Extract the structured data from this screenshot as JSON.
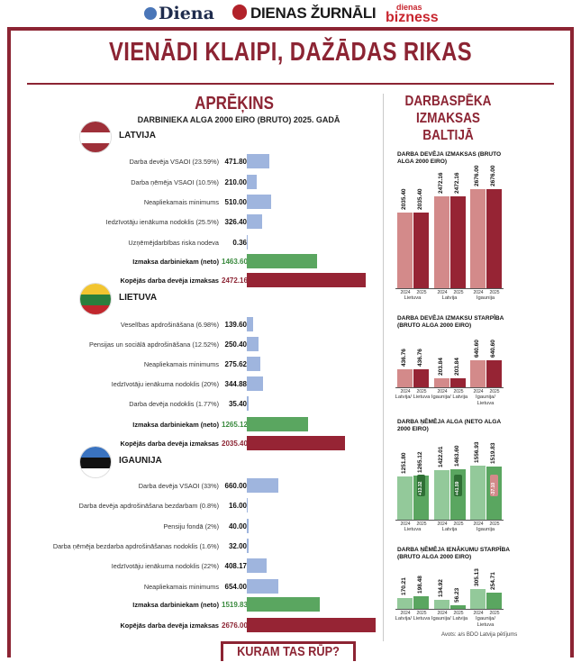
{
  "header": {
    "logo_diena": "Diena",
    "logo_zurnali": "DIENAS ŽURNĀLI",
    "logo_bizness_small": "dienas",
    "logo_bizness": "bizness"
  },
  "title": "VIENĀDI KLAIPI, DAŽĀDAS RIKAS",
  "left": {
    "title": "APRĒĶINS",
    "subtitle": "DARBINIEKA ALGA 2000 EIRO (BRUTO) 2025. GADĀ"
  },
  "countries": [
    {
      "name": "LATVIJA",
      "flag": [
        "#9e3039",
        "#ffffff",
        "#9e3039"
      ],
      "rows": [
        {
          "label": "Darba devēja VSAOI (23.59%)",
          "value": "471.80",
          "amount": 471.8,
          "kind": "blue"
        },
        {
          "label": "Darba ņēmēja VSAOI (10.5%)",
          "value": "210.00",
          "amount": 210.0,
          "kind": "blue"
        },
        {
          "label": "Neapliekamais minimums",
          "value": "510.00",
          "amount": 510.0,
          "kind": "blue"
        },
        {
          "label": "Iedzīvotāju ienākuma nodoklis (25.5%)",
          "value": "326.40",
          "amount": 326.4,
          "kind": "blue"
        },
        {
          "label": "Uzņēmējdarbības riska nodeva",
          "value": "0.36",
          "amount": 0.36,
          "kind": "blue"
        },
        {
          "label": "Izmaksa darbiniekam (neto)",
          "value": "1463.60",
          "amount": 1463.6,
          "kind": "green"
        },
        {
          "label": "Kopējās darba devēja izmaksas",
          "value": "2472.16",
          "amount": 2472.16,
          "kind": "red"
        }
      ]
    },
    {
      "name": "LIETUVA",
      "flag": [
        "#f2c530",
        "#2a7f3d",
        "#c1272d"
      ],
      "rows": [
        {
          "label": "Veselības apdrošināšana (6.98%)",
          "value": "139.60",
          "amount": 139.6,
          "kind": "blue"
        },
        {
          "label": "Pensijas un sociālā apdrošināšana (12.52%)",
          "value": "250.40",
          "amount": 250.4,
          "kind": "blue"
        },
        {
          "label": "Neapliekamais minimums",
          "value": "275.62",
          "amount": 275.62,
          "kind": "blue"
        },
        {
          "label": "Iedzīvotāju ienākuma nodoklis (20%)",
          "value": "344.88",
          "amount": 344.88,
          "kind": "blue"
        },
        {
          "label": "Darba devēja nodoklis (1.77%)",
          "value": "35.40",
          "amount": 35.4,
          "kind": "blue"
        },
        {
          "label": "Izmaksa darbiniekam (neto)",
          "value": "1265.12",
          "amount": 1265.12,
          "kind": "green"
        },
        {
          "label": "Kopējās darba devēja izmaksas",
          "value": "2035.40",
          "amount": 2035.4,
          "kind": "red"
        }
      ]
    },
    {
      "name": "IGAUNIJA",
      "flag": [
        "#3a73c0",
        "#111111",
        "#ffffff"
      ],
      "rows": [
        {
          "label": "Darba devēja VSAOI (33%)",
          "value": "660.00",
          "amount": 660.0,
          "kind": "blue"
        },
        {
          "label": "Darba devēja apdrošināšana bezdarbam (0.8%)",
          "value": "16.00",
          "amount": 16.0,
          "kind": "blue"
        },
        {
          "label": "Pensiju fondā (2%)",
          "value": "40.00",
          "amount": 40.0,
          "kind": "blue"
        },
        {
          "label": "Darba ņēmēja bezdarba apdrošināšanas nodoklis (1.6%)",
          "value": "32.00",
          "amount": 32.0,
          "kind": "blue"
        },
        {
          "label": "Iedzīvotāju ienākuma nodoklis (22%)",
          "value": "408.17",
          "amount": 408.17,
          "kind": "blue"
        },
        {
          "label": "Neapliekamais minimums",
          "value": "654.00",
          "amount": 654.0,
          "kind": "blue"
        },
        {
          "label": "Izmaksa darbiniekam (neto)",
          "value": "1519.83",
          "amount": 1519.83,
          "kind": "green"
        },
        {
          "label": "Kopējās darba devēja izmaksas",
          "value": "2676.00",
          "amount": 2676.0,
          "kind": "red"
        }
      ]
    }
  ],
  "right": {
    "title": "DARBASPĒKA IZMAKSAS BALTIJĀ"
  },
  "chart_data": [
    {
      "type": "bar",
      "title": "DARBA DEVĒJA IZMAKSAS (BRUTO ALGA 2000 EIRO)",
      "categories": [
        "Lietuva",
        "Latvija",
        "Igaunija"
      ],
      "series": [
        {
          "name": "2024",
          "values": [
            2035.4,
            2472.16,
            2676.0
          ]
        },
        {
          "name": "2025",
          "values": [
            2035.4,
            2472.16,
            2676.0
          ]
        }
      ],
      "labels": [
        [
          "2035.40",
          "2035.40"
        ],
        [
          "2472.16",
          "2472.16"
        ],
        [
          "2676.00",
          "2676.00"
        ]
      ],
      "colors": [
        "#d38a8a",
        "#962434"
      ]
    },
    {
      "type": "bar",
      "title": "DARBA DEVĒJA IZMAKSU STARPĪBA (BRUTO ALGA 2000 EIRO)",
      "categories": [
        "Latvija/ Lietuva",
        "Igaunija/ Latvija",
        "Igaunija/ Lietuva"
      ],
      "series": [
        {
          "name": "2024",
          "values": [
            436.76,
            203.84,
            640.6
          ]
        },
        {
          "name": "2025",
          "values": [
            436.76,
            203.84,
            640.6
          ]
        }
      ],
      "labels": [
        [
          "436.76",
          "436.76"
        ],
        [
          "203.84",
          "203.84"
        ],
        [
          "640.60",
          "640.60"
        ]
      ],
      "colors": [
        "#d38a8a",
        "#962434"
      ]
    },
    {
      "type": "bar",
      "title": "DARBA ŅĒMĒJA ALGA (NETO ALGA 2000 EIRO)",
      "categories": [
        "Lietuva",
        "Latvija",
        "Igaunija"
      ],
      "series": [
        {
          "name": "2024",
          "values": [
            1251.8,
            1422.01,
            1556.93
          ]
        },
        {
          "name": "2025",
          "values": [
            1265.12,
            1463.6,
            1519.83
          ]
        }
      ],
      "labels": [
        [
          "1251.80",
          "1265.12"
        ],
        [
          "1422.01",
          "1463.60"
        ],
        [
          "1556.93",
          "1519.83"
        ]
      ],
      "deltas": [
        "+13.32",
        "+41.59",
        "-37.10"
      ],
      "colors": [
        "#93c99a",
        "#5aa660"
      ]
    },
    {
      "type": "bar",
      "title": "DARBA ŅĒMĒJA IENĀKUMU STARPĪBA (BRUTO ALGA 2000 EIRO)",
      "categories": [
        "Latvija/ Lietuva",
        "Igaunija/ Latvija",
        "Igaunija/ Lietuva"
      ],
      "series": [
        {
          "name": "2024",
          "values": [
            170.21,
            134.92,
            305.13
          ]
        },
        {
          "name": "2025",
          "values": [
            198.48,
            56.23,
            254.71
          ]
        }
      ],
      "labels": [
        [
          "170.21",
          "198.48"
        ],
        [
          "134.92",
          "56.23"
        ],
        [
          "305.13",
          "254.71"
        ]
      ],
      "colors": [
        "#93c99a",
        "#5aa660"
      ]
    }
  ],
  "source": "Avots: a/s BDO Latvija pētījums",
  "footer": "KURAM TAS RŪP?"
}
